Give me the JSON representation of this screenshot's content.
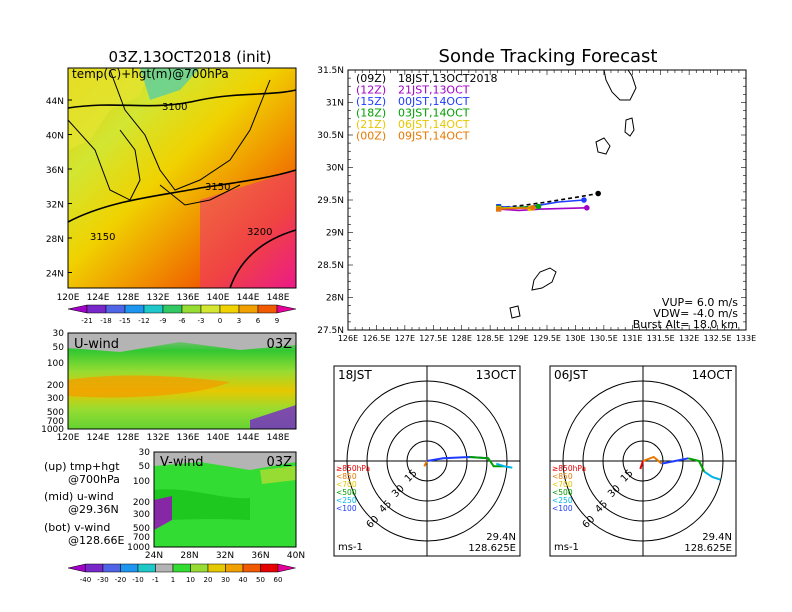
{
  "left": {
    "map_title": "03Z,13OCT2018 (init)",
    "map_label": "temp(C)+hgt(m)@700hPa",
    "contours": [
      "3100",
      "3150",
      "3150",
      "3200"
    ],
    "map_lat_ticks": [
      "44N",
      "40N",
      "36N",
      "32N",
      "28N",
      "24N"
    ],
    "map_lon_ticks": [
      "120E",
      "124E",
      "128E",
      "132E",
      "136E",
      "140E",
      "144E",
      "148E"
    ],
    "temp_scale": [
      "-21",
      "-18",
      "-15",
      "-12",
      "-9",
      "-6",
      "-3",
      "0",
      "3",
      "6",
      "9"
    ],
    "u_label": "U-wind",
    "u_time": "03Z",
    "u_p_ticks": [
      "30",
      "50",
      "100",
      "200",
      "300",
      "500",
      "700",
      "1000"
    ],
    "u_lon_ticks": [
      "120E",
      "124E",
      "128E",
      "132E",
      "136E",
      "140E",
      "144E",
      "148E"
    ],
    "v_label": "V-wind",
    "v_time": "03Z",
    "v_p_ticks": [
      "30",
      "50",
      "100",
      "200",
      "300",
      "500",
      "700",
      "1000"
    ],
    "v_lat_ticks": [
      "24N",
      "28N",
      "32N",
      "36N",
      "40N"
    ],
    "wind_scale": [
      "-40",
      "-30",
      "-20",
      "-10",
      "-1",
      "1",
      "10",
      "20",
      "30",
      "40",
      "50",
      "60"
    ],
    "legend": {
      "up1": "(up) tmp+hgt",
      "up2": "@700hPa",
      "mid1": "(mid) u-wind",
      "mid2": "@29.36N",
      "bot1": "(bot) v-wind",
      "bot2": "@128.66E"
    }
  },
  "colors": {
    "z09": "#000000",
    "z12": "#a000c8",
    "z15": "#1e3cff",
    "z18": "#00a000",
    "z21": "#e6c800",
    "z00": "#e67800"
  },
  "chart_data": [
    {
      "type": "line",
      "title": "Sonde Tracking Forecast",
      "xlim": [
        126,
        133
      ],
      "ylim": [
        27.5,
        31.5
      ],
      "x_ticks": [
        "126E",
        "126.5E",
        "127E",
        "127.5E",
        "128E",
        "128.5E",
        "129E",
        "129.5E",
        "130E",
        "130.5E",
        "131E",
        "131.5E",
        "132E",
        "132.5E",
        "133E"
      ],
      "y_ticks": [
        "27.5N",
        "28N",
        "28.5N",
        "29N",
        "29.5N",
        "30N",
        "30.5N",
        "31N",
        "31.5N"
      ],
      "legend": [
        {
          "z": "(09Z)",
          "t": "18JST,13OCT2018"
        },
        {
          "z": "(12Z)",
          "t": "21JST,13OCT"
        },
        {
          "z": "(15Z)",
          "t": "00JST,14OCT"
        },
        {
          "z": "(18Z)",
          "t": "03JST,14OCT"
        },
        {
          "z": "(21Z)",
          "t": "06JST,14OCT"
        },
        {
          "z": "(00Z)",
          "t": "09JST,14OCT"
        }
      ],
      "info": [
        "VUP=  6.0 m/s",
        "VDW= -4.0 m/s",
        "Burst Alt= 18.0 km"
      ],
      "series": [
        {
          "key": "z09",
          "dashed": true,
          "points": [
            [
              128.65,
              29.38
            ],
            [
              129.1,
              29.42
            ],
            [
              129.5,
              29.47
            ],
            [
              130.0,
              29.54
            ],
            [
              130.4,
              29.6
            ]
          ],
          "end": [
            130.4,
            29.6
          ]
        },
        {
          "key": "z12",
          "points": [
            [
              128.65,
              29.36
            ],
            [
              129.0,
              29.34
            ],
            [
              129.4,
              29.36
            ],
            [
              129.8,
              29.37
            ],
            [
              130.2,
              29.38
            ]
          ],
          "end": [
            130.2,
            29.38
          ]
        },
        {
          "key": "z15",
          "points": [
            [
              128.65,
              29.4
            ],
            [
              129.0,
              29.38
            ],
            [
              129.3,
              29.41
            ],
            [
              129.7,
              29.47
            ],
            [
              130.15,
              29.5
            ]
          ],
          "end": [
            130.15,
            29.5
          ]
        },
        {
          "key": "z18",
          "points": [
            [
              128.65,
              29.38
            ],
            [
              128.9,
              29.38
            ],
            [
              129.15,
              29.39
            ],
            [
              129.35,
              29.4
            ]
          ],
          "end": [
            129.35,
            29.4
          ]
        },
        {
          "key": "z21",
          "points": [
            [
              128.65,
              29.37
            ],
            [
              128.9,
              29.38
            ],
            [
              129.2,
              29.37
            ]
          ],
          "end": [
            129.2,
            29.37
          ]
        },
        {
          "key": "z00",
          "points": [
            [
              128.65,
              29.36
            ],
            [
              128.9,
              29.37
            ],
            [
              129.25,
              29.38
            ]
          ],
          "end": [
            129.25,
            29.38
          ]
        }
      ]
    },
    {
      "type": "scatter",
      "title": "18JST",
      "date": "13OCT",
      "units": "ms-1",
      "location": [
        "29.4N",
        "128.625E"
      ],
      "ring_labels": [
        "15",
        "30",
        "45",
        "60"
      ],
      "levels": [
        "≥850hPa",
        "<850",
        "<700",
        "<500",
        "<250",
        "<100"
      ],
      "tracks": [
        {
          "color": "#e67800",
          "points": [
            [
              0,
              0
            ],
            [
              -2,
              -4
            ]
          ]
        },
        {
          "color": "#1e3cff",
          "points": [
            [
              0,
              0
            ],
            [
              12,
              2
            ],
            [
              32,
              3
            ],
            [
              46,
              2
            ]
          ]
        },
        {
          "color": "#00a000",
          "points": [
            [
              32,
              3
            ],
            [
              46,
              2
            ],
            [
              50,
              -4
            ],
            [
              58,
              -4
            ]
          ]
        },
        {
          "color": "#00b4e6",
          "points": [
            [
              52,
              -2
            ],
            [
              58,
              -4
            ],
            [
              64,
              -5
            ]
          ]
        }
      ]
    },
    {
      "type": "scatter",
      "title": "06JST",
      "date": "14OCT",
      "units": "ms-1",
      "location": [
        "29.4N",
        "128.625E"
      ],
      "ring_labels": [
        "15",
        "30",
        "45",
        "60"
      ],
      "levels": [
        "≥850hPa",
        "<850",
        "<700",
        "<500",
        "<250",
        "<100"
      ],
      "tracks": [
        {
          "color": "#e60000",
          "points": [
            [
              0,
              0
            ],
            [
              -2,
              -6
            ]
          ]
        },
        {
          "color": "#e67800",
          "points": [
            [
              0,
              0
            ],
            [
              8,
              3
            ],
            [
              14,
              -2
            ]
          ]
        },
        {
          "color": "#1e3cff",
          "points": [
            [
              14,
              -2
            ],
            [
              24,
              0
            ],
            [
              34,
              2
            ]
          ]
        },
        {
          "color": "#00a000",
          "points": [
            [
              34,
              2
            ],
            [
              42,
              0
            ],
            [
              46,
              -8
            ]
          ]
        },
        {
          "color": "#00b4e6",
          "points": [
            [
              46,
              -8
            ],
            [
              52,
              -12
            ],
            [
              58,
              -14
            ]
          ]
        }
      ]
    }
  ]
}
